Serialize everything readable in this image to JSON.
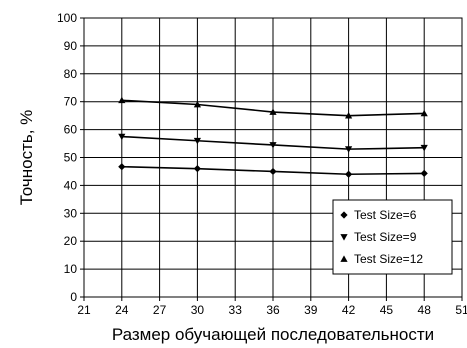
{
  "chart_data": {
    "type": "line",
    "title": "",
    "xlabel": "Размер обучающей последовательности",
    "ylabel": "Точность, %",
    "x": [
      24,
      30,
      36,
      42,
      48
    ],
    "xlim": [
      21,
      51
    ],
    "ylim": [
      0,
      100
    ],
    "xticks": [
      21,
      24,
      27,
      30,
      33,
      36,
      39,
      42,
      45,
      48,
      51
    ],
    "yticks": [
      0,
      10,
      20,
      30,
      40,
      50,
      60,
      70,
      80,
      90,
      100
    ],
    "grid": true,
    "legend_position": "bottom-right",
    "series": [
      {
        "name": "Test Size=6",
        "marker": "diamond",
        "values": [
          46.7,
          46.0,
          45.0,
          44.0,
          44.3
        ]
      },
      {
        "name": "Test Size=9",
        "marker": "triangle-down",
        "values": [
          57.5,
          56.0,
          54.5,
          53.0,
          53.5
        ]
      },
      {
        "name": "Test Size=12",
        "marker": "triangle-up",
        "values": [
          70.5,
          69.0,
          66.3,
          65.0,
          65.8
        ]
      }
    ],
    "colors": {
      "line": "#000000",
      "grid": "#000000",
      "background": "#ffffff"
    }
  }
}
